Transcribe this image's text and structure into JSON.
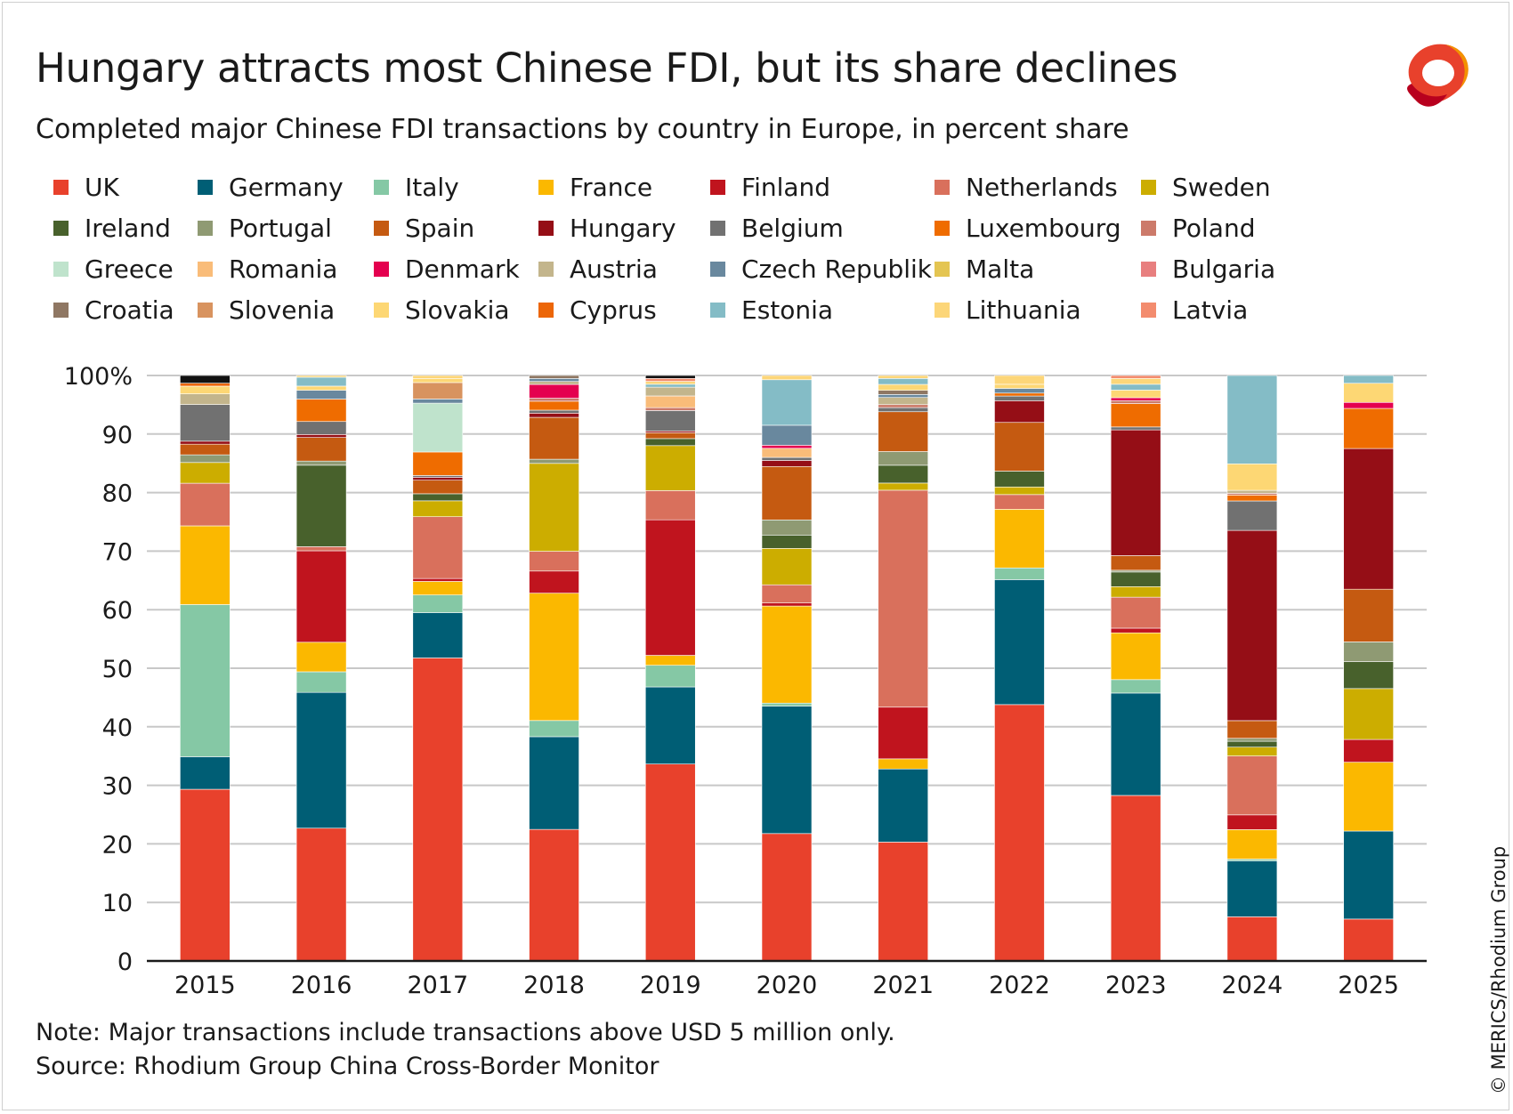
{
  "header": {
    "title": "Hungary attracts most Chinese FDI, but its share declines",
    "subtitle": "Completed major Chinese FDI transactions by country in Europe, in percent share"
  },
  "footer": {
    "note": "Note: Major transactions include transactions above USD 5 million only.",
    "source": "Source: Rhodium Group China Cross-Border Monitor",
    "credit": "© MERICS/Rhodium Group"
  },
  "logo": {
    "icon": "merics-ring-logo-icon",
    "colors": [
      "#e8412c",
      "#f39200",
      "#b8001e"
    ]
  },
  "chart_data": {
    "type": "bar",
    "stacked": true,
    "categories": [
      "2015",
      "2016",
      "2017",
      "2018",
      "2019",
      "2020",
      "2021",
      "2022",
      "2023",
      "2024",
      "2025"
    ],
    "ylim": [
      0,
      100
    ],
    "yticks": [
      0,
      10,
      20,
      30,
      40,
      50,
      60,
      70,
      80,
      90,
      100
    ],
    "ytick_labels": [
      "0",
      "10",
      "20",
      "30",
      "40",
      "50",
      "60",
      "70",
      "80",
      "90",
      "100%"
    ],
    "grid": true,
    "legend_position": "top",
    "series": [
      {
        "name": "UK",
        "color": "#e8412c",
        "values": [
          29,
          22.5,
          51.5,
          22,
          33.7,
          21,
          20,
          43.7,
          28.3,
          7.5,
          7
        ]
      },
      {
        "name": "Germany",
        "color": "#005e75",
        "values": [
          5.5,
          23,
          7.7,
          15.5,
          13.2,
          21,
          12.3,
          21.3,
          17.5,
          9.5,
          14.7
        ]
      },
      {
        "name": "Italy",
        "color": "#85c8a5",
        "values": [
          25.7,
          3.5,
          3,
          2.7,
          3.7,
          0.5,
          0,
          2,
          2.3,
          0.3,
          0
        ]
      },
      {
        "name": "France",
        "color": "#fbb800",
        "values": [
          13.3,
          5,
          2.3,
          21.3,
          1.7,
          16,
          1.7,
          10,
          8,
          5,
          11.5
        ]
      },
      {
        "name": "Finland",
        "color": "#c0141e",
        "values": [
          0,
          15.5,
          0.5,
          3.7,
          23.2,
          0.5,
          8.7,
          0,
          0.8,
          2.5,
          3.8
        ]
      },
      {
        "name": "Netherlands",
        "color": "#d9705c",
        "values": [
          7.2,
          0.7,
          10.5,
          3.3,
          5,
          3,
          36.5,
          2.5,
          5.3,
          10,
          0
        ]
      },
      {
        "name": "Sweden",
        "color": "#ccad00",
        "values": [
          3.5,
          0,
          2.7,
          14.7,
          7.7,
          6,
          1.2,
          1.3,
          1.8,
          1.5,
          8.5
        ]
      },
      {
        "name": "Ireland",
        "color": "#48612c",
        "values": [
          0,
          13.8,
          1.2,
          0,
          1.2,
          2.2,
          3,
          2.7,
          2.5,
          1,
          4.5
        ]
      },
      {
        "name": "Portugal",
        "color": "#8f9a73",
        "values": [
          1.3,
          0.7,
          0,
          0.7,
          0,
          2.5,
          2.3,
          0,
          0.3,
          0.5,
          3.3
        ]
      },
      {
        "name": "Spain",
        "color": "#c55a11",
        "values": [
          1.8,
          4,
          2.3,
          7,
          1,
          8.8,
          6.7,
          8.3,
          2.5,
          3,
          8.8
        ]
      },
      {
        "name": "Hungary",
        "color": "#950e16",
        "values": [
          0.5,
          0.5,
          0.5,
          0.7,
          0.3,
          1,
          0,
          3.7,
          21.5,
          32.3,
          23.5
        ]
      },
      {
        "name": "Belgium",
        "color": "#717171",
        "values": [
          6.2,
          2.2,
          0.3,
          0.5,
          3.5,
          0.5,
          0.7,
          0.8,
          0.5,
          5,
          0
        ]
      },
      {
        "name": "Luxembourg",
        "color": "#ef6c00",
        "values": [
          0,
          3.8,
          4,
          1.5,
          0,
          0,
          0,
          0.5,
          4,
          1,
          6.7
        ]
      },
      {
        "name": "Poland",
        "color": "#cc7a6a",
        "values": [
          0,
          0,
          0,
          0.5,
          0.5,
          0,
          0.5,
          0,
          0.5,
          0.3,
          0
        ]
      },
      {
        "name": "Greece",
        "color": "#bfe3cc",
        "values": [
          0,
          0,
          8.3,
          0,
          0,
          0,
          0,
          0,
          0,
          0,
          0
        ]
      },
      {
        "name": "Romania",
        "color": "#f9bc79",
        "values": [
          0,
          0,
          0,
          0,
          2,
          1.5,
          0,
          0,
          0,
          0,
          0
        ]
      },
      {
        "name": "Denmark",
        "color": "#e4004f",
        "values": [
          0,
          0,
          0,
          2.3,
          0,
          0.5,
          0,
          0,
          0.5,
          0,
          1
        ]
      },
      {
        "name": "Austria",
        "color": "#c3b58c",
        "values": [
          1.8,
          0,
          0,
          0.5,
          1.5,
          0,
          1.2,
          0,
          0,
          0.5,
          0
        ]
      },
      {
        "name": "Czech Republik",
        "color": "#69889e",
        "values": [
          0,
          1.5,
          0.7,
          0.5,
          0,
          3.3,
          0.5,
          0.8,
          0,
          0,
          0
        ]
      },
      {
        "name": "Malta",
        "color": "#e4c552",
        "values": [
          0,
          0,
          0,
          0,
          0,
          0,
          0,
          0,
          0,
          0,
          0
        ]
      },
      {
        "name": "Bulgaria",
        "color": "#e87f7f",
        "values": [
          0,
          0,
          0,
          0,
          0,
          0,
          0,
          0,
          0,
          0,
          0
        ]
      },
      {
        "name": "Croatia",
        "color": "#8f7763",
        "values": [
          0,
          0,
          0,
          0.5,
          0,
          0,
          0.7,
          0,
          0,
          0,
          0
        ]
      },
      {
        "name": "Slovenia",
        "color": "#d8935f",
        "values": [
          0,
          0,
          2.8,
          0,
          0,
          0,
          0,
          0,
          0,
          0,
          0
        ]
      },
      {
        "name": "Slovakia",
        "color": "#fdd774",
        "values": [
          1.3,
          0.7,
          0.7,
          0,
          0,
          0,
          1,
          0.7,
          1.3,
          4.5,
          3.2
        ]
      },
      {
        "name": "Cyprus",
        "color": "#ec6608",
        "values": [
          0.5,
          0,
          0,
          0,
          0,
          0,
          0,
          0,
          0,
          0,
          0
        ]
      },
      {
        "name": "Estonia",
        "color": "#84bcc6",
        "values": [
          0,
          1.5,
          0,
          0,
          0.5,
          7.5,
          1,
          0,
          1,
          15,
          1.3
        ]
      },
      {
        "name": "Lithuania",
        "color": "#fcd679",
        "values": [
          0,
          0.3,
          0.5,
          0,
          0.5,
          0.7,
          0.5,
          1.5,
          1,
          0,
          0
        ]
      },
      {
        "name": "Latvia",
        "color": "#f38c6e",
        "values": [
          0,
          0,
          0,
          0,
          0.5,
          0,
          0,
          0,
          0.5,
          0,
          0
        ]
      },
      {
        "name": "",
        "color": "#111111",
        "values": [
          1.3,
          0,
          0,
          0,
          0.5,
          0,
          0,
          0,
          0,
          0,
          0
        ]
      }
    ]
  }
}
